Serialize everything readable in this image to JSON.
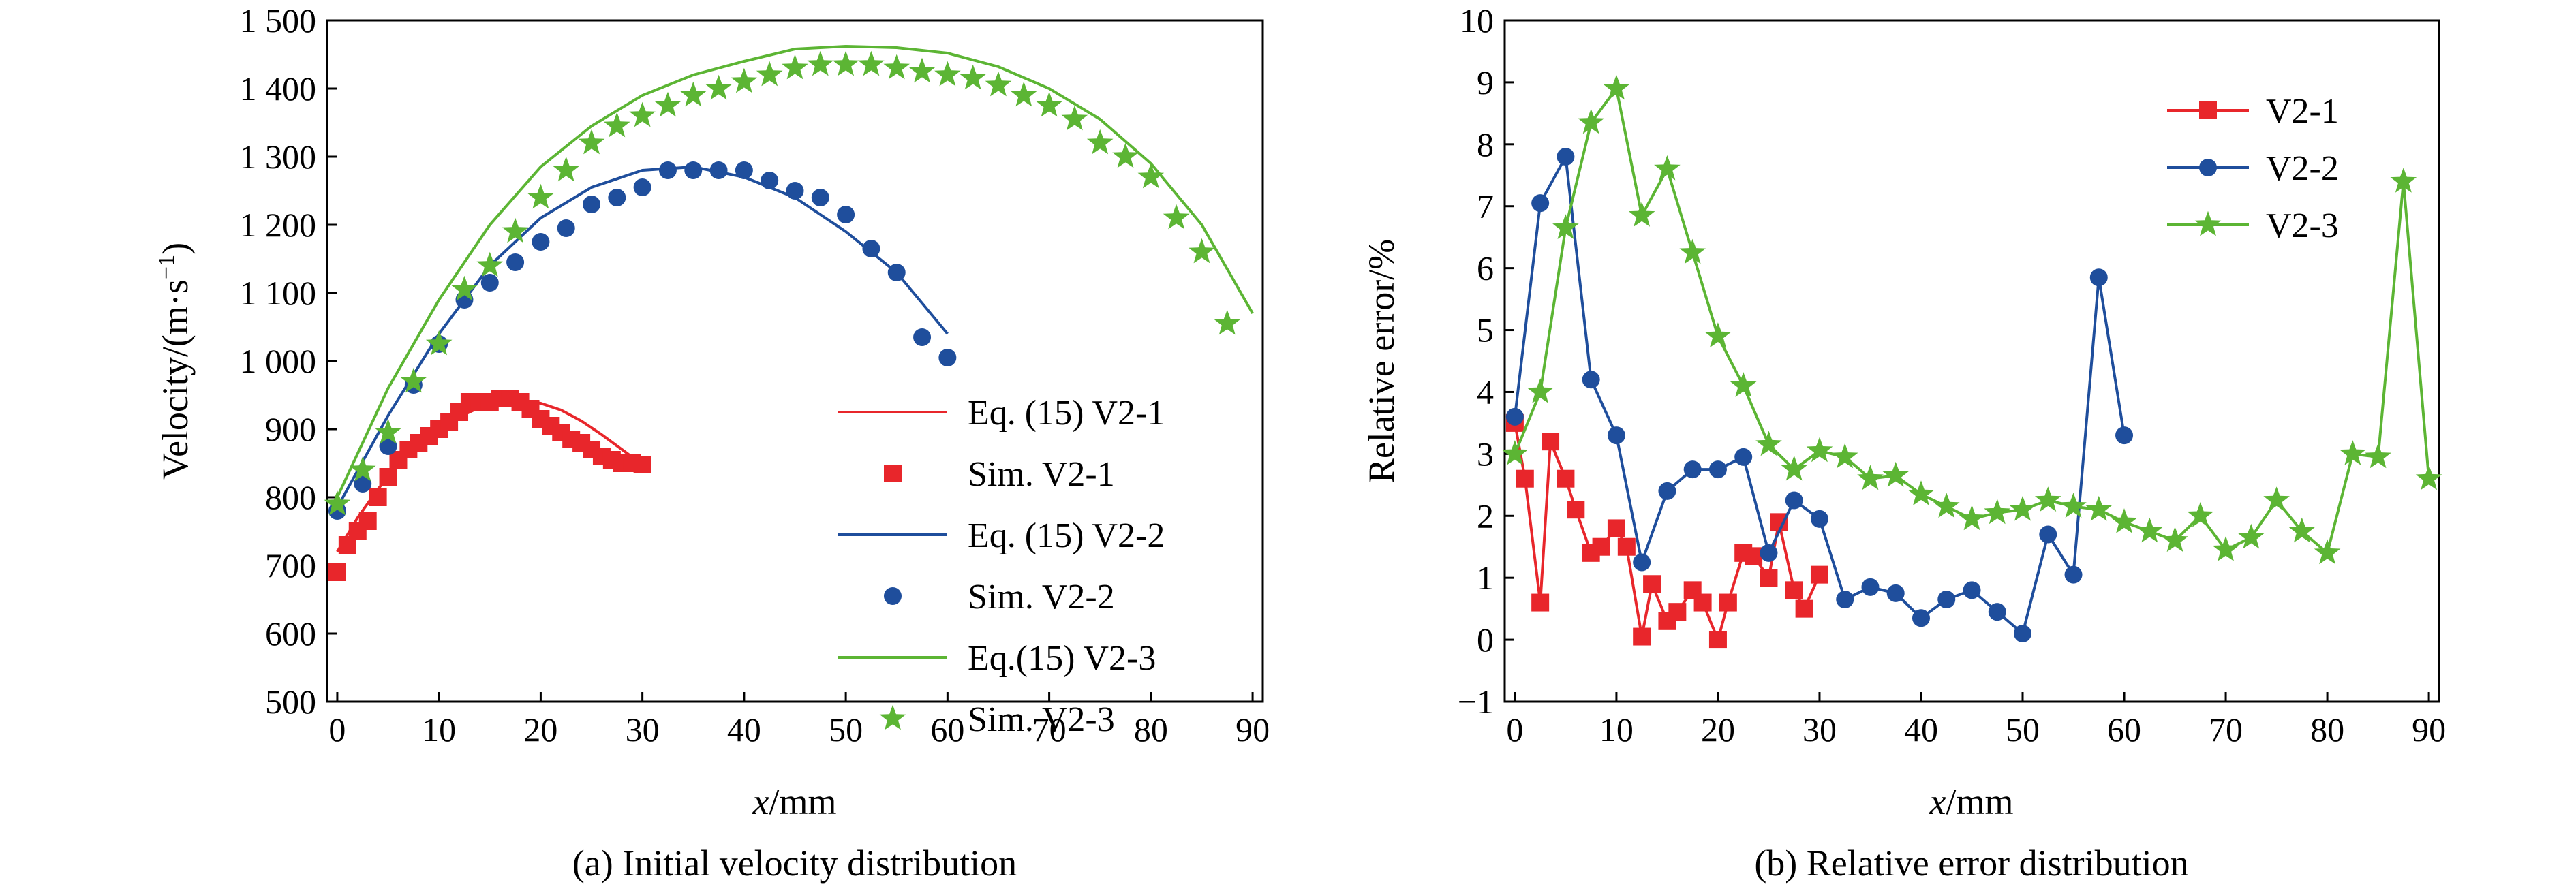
{
  "chart_data": [
    {
      "type": "line",
      "caption": "(a) Initial velocity distribution",
      "xlabel_var": "x",
      "xlabel_unit": "/mm",
      "ylabel_base": "Velocity/(m·s",
      "ylabel_sup": "−1",
      "ylabel_close": ")",
      "xlim": [
        -1,
        91
      ],
      "ylim": [
        500,
        1500
      ],
      "xticks": [
        0,
        10,
        20,
        30,
        40,
        50,
        60,
        70,
        80,
        90
      ],
      "yticks": [
        500,
        600,
        700,
        800,
        900,
        1000,
        1100,
        1200,
        1300,
        1400,
        1500
      ],
      "ytick_labels": [
        "500",
        "600",
        "700",
        "800",
        "900",
        "1 000",
        "1 100",
        "1 200",
        "1 300",
        "1 400",
        "1 500"
      ],
      "legend_position": "bottom-right",
      "series": [
        {
          "name": "Eq. (15) V2-1",
          "kind": "line",
          "color": "#e8262b",
          "x": [
            0,
            2,
            4,
            6,
            8,
            10,
            12,
            14,
            16,
            18,
            20,
            22,
            24,
            26,
            28,
            30
          ],
          "y": [
            720,
            770,
            812,
            848,
            877,
            900,
            918,
            932,
            940,
            942,
            938,
            928,
            912,
            892,
            870,
            848
          ]
        },
        {
          "name": "Sim. V2-1",
          "kind": "marker",
          "marker": "square",
          "color": "#e8262b",
          "x": [
            0,
            1,
            2,
            3,
            4,
            5,
            6,
            7,
            8,
            9,
            10,
            11,
            12,
            13,
            14,
            15,
            16,
            17,
            18,
            19,
            20,
            21,
            22,
            23,
            24,
            25,
            26,
            27,
            28,
            29,
            30
          ],
          "y": [
            690,
            730,
            750,
            765,
            800,
            830,
            855,
            870,
            880,
            890,
            900,
            910,
            925,
            940,
            940,
            940,
            945,
            945,
            940,
            930,
            915,
            905,
            895,
            885,
            880,
            870,
            860,
            855,
            850,
            850,
            848
          ]
        },
        {
          "name": "Eq. (15) V2-2",
          "kind": "line",
          "color": "#1f4e9c",
          "x": [
            0,
            5,
            10,
            15,
            20,
            25,
            30,
            35,
            40,
            45,
            50,
            55,
            60
          ],
          "y": [
            785,
            920,
            1040,
            1140,
            1210,
            1255,
            1280,
            1285,
            1270,
            1240,
            1190,
            1130,
            1040
          ]
        },
        {
          "name": "Sim. V2-2",
          "kind": "marker",
          "marker": "circle",
          "color": "#1f4e9c",
          "x": [
            0,
            2.5,
            5,
            7.5,
            10,
            12.5,
            15,
            17.5,
            20,
            22.5,
            25,
            27.5,
            30,
            32.5,
            35,
            37.5,
            40,
            42.5,
            45,
            47.5,
            50,
            52.5,
            55,
            57.5,
            60
          ],
          "y": [
            780,
            820,
            875,
            965,
            1025,
            1090,
            1115,
            1145,
            1175,
            1195,
            1230,
            1240,
            1255,
            1280,
            1280,
            1280,
            1280,
            1265,
            1250,
            1240,
            1215,
            1165,
            1130,
            1035,
            1005
          ]
        },
        {
          "name": "Eq.(15) V2-3",
          "kind": "line",
          "color": "#5cb534",
          "x": [
            0,
            5,
            10,
            15,
            20,
            25,
            30,
            35,
            40,
            45,
            50,
            55,
            60,
            65,
            70,
            75,
            80,
            85,
            90
          ],
          "y": [
            800,
            960,
            1090,
            1200,
            1285,
            1345,
            1390,
            1420,
            1440,
            1458,
            1462,
            1460,
            1452,
            1432,
            1400,
            1355,
            1290,
            1200,
            1070
          ]
        },
        {
          "name": "Sim. V2-3",
          "kind": "marker",
          "marker": "star",
          "color": "#5cb534",
          "x": [
            0,
            2.5,
            5,
            7.5,
            10,
            12.5,
            15,
            17.5,
            20,
            22.5,
            25,
            27.5,
            30,
            32.5,
            35,
            37.5,
            40,
            42.5,
            45,
            47.5,
            50,
            52.5,
            55,
            57.5,
            60,
            62.5,
            65,
            67.5,
            70,
            72.5,
            75,
            77.5,
            80,
            82.5,
            85,
            87.5
          ],
          "y": [
            790,
            840,
            895,
            970,
            1025,
            1105,
            1140,
            1190,
            1240,
            1280,
            1320,
            1345,
            1360,
            1375,
            1390,
            1400,
            1410,
            1420,
            1430,
            1435,
            1435,
            1435,
            1430,
            1425,
            1420,
            1415,
            1405,
            1390,
            1375,
            1355,
            1320,
            1300,
            1270,
            1210,
            1160,
            1055
          ]
        }
      ]
    },
    {
      "type": "line",
      "caption": "(b) Relative error distribution",
      "xlabel_var": "x",
      "xlabel_unit": "/mm",
      "ylabel": "Relative error/%",
      "xlim": [
        -1,
        91
      ],
      "ylim": [
        -1,
        10
      ],
      "xticks": [
        0,
        10,
        20,
        30,
        40,
        50,
        60,
        70,
        80,
        90
      ],
      "yticks": [
        -1,
        0,
        1,
        2,
        3,
        4,
        5,
        6,
        7,
        8,
        9,
        10
      ],
      "ytick_labels": [
        "−1",
        "0",
        "1",
        "2",
        "3",
        "4",
        "5",
        "6",
        "7",
        "8",
        "9",
        "10"
      ],
      "legend_position": "top-right",
      "series": [
        {
          "name": "V2-1",
          "marker": "square",
          "color": "#e8262b",
          "x": [
            0,
            1,
            2.5,
            3.5,
            5,
            6,
            7.5,
            8.5,
            10,
            11,
            12.5,
            13.5,
            15,
            16,
            17.5,
            18.5,
            20,
            21,
            22.5,
            23.5,
            25,
            26,
            27.5,
            28.5,
            30
          ],
          "y": [
            3.5,
            2.6,
            0.6,
            3.2,
            2.6,
            2.1,
            1.4,
            1.5,
            1.8,
            1.5,
            0.05,
            0.9,
            0.3,
            0.45,
            0.8,
            0.6,
            0.0,
            0.6,
            1.4,
            1.35,
            1.0,
            1.9,
            0.8,
            0.5,
            1.05
          ]
        },
        {
          "name": "V2-2",
          "marker": "circle",
          "color": "#1f4e9c",
          "x": [
            0,
            2.5,
            5,
            7.5,
            10,
            12.5,
            15,
            17.5,
            20,
            22.5,
            25,
            27.5,
            30,
            32.5,
            35,
            37.5,
            40,
            42.5,
            45,
            47.5,
            50,
            52.5,
            55,
            57.5,
            60
          ],
          "y": [
            3.6,
            7.05,
            7.8,
            4.2,
            3.3,
            1.25,
            2.4,
            2.75,
            2.75,
            2.95,
            1.4,
            2.25,
            1.95,
            0.65,
            0.85,
            0.75,
            0.35,
            0.65,
            0.8,
            0.45,
            0.1,
            1.7,
            1.05,
            5.85,
            3.3
          ]
        },
        {
          "name": "V2-3",
          "marker": "star",
          "color": "#5cb534",
          "x": [
            0,
            2.5,
            5,
            7.5,
            10,
            12.5,
            15,
            17.5,
            20,
            22.5,
            25,
            27.5,
            30,
            32.5,
            35,
            37.5,
            40,
            42.5,
            45,
            47.5,
            50,
            52.5,
            55,
            57.5,
            60,
            62.5,
            65,
            67.5,
            70,
            72.5,
            75,
            77.5,
            80,
            82.5,
            85,
            87.5,
            90
          ],
          "y": [
            3.0,
            4.0,
            6.65,
            8.35,
            8.9,
            6.85,
            7.6,
            6.25,
            4.9,
            4.1,
            3.15,
            2.75,
            3.05,
            2.95,
            2.6,
            2.65,
            2.35,
            2.15,
            1.95,
            2.05,
            2.1,
            2.25,
            2.15,
            2.1,
            1.9,
            1.75,
            1.6,
            2.0,
            1.45,
            1.65,
            2.25,
            1.75,
            1.4,
            3.0,
            2.95,
            7.4,
            2.6
          ]
        }
      ]
    }
  ]
}
